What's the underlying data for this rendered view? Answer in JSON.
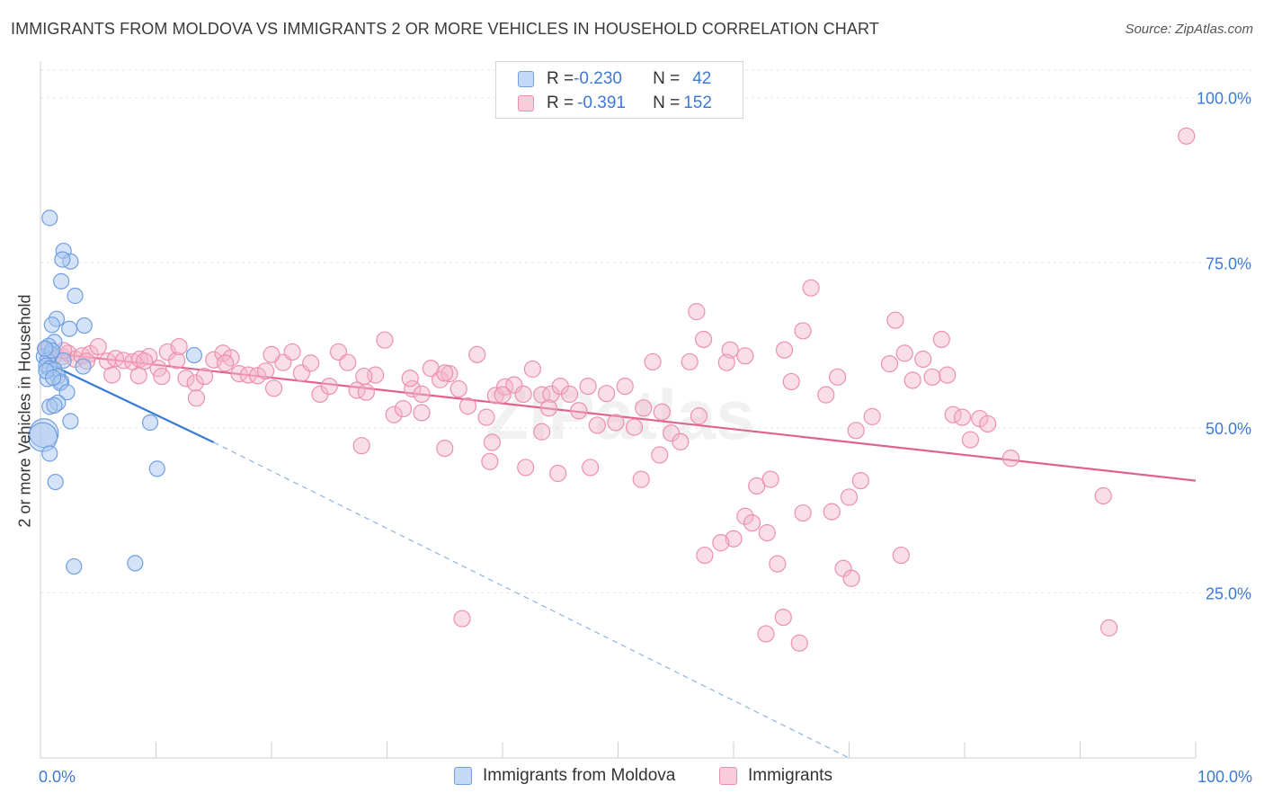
{
  "title": "IMMIGRANTS FROM MOLDOVA VS IMMIGRANTS 2 OR MORE VEHICLES IN HOUSEHOLD CORRELATION CHART",
  "source": "Source: ZipAtlas.com",
  "watermark": "ZIPatlas",
  "legend": {
    "rows": [
      {
        "r_label": "R = ",
        "r_value": "-0.230",
        "n_label": "N = ",
        "n_value": "42",
        "color": "#a9c8f0"
      },
      {
        "r_label": "R = ",
        "r_value": "-0.391",
        "n_label": "N = ",
        "n_value": "152",
        "color": "#f5b6ca"
      }
    ]
  },
  "bottom_legend": [
    {
      "label": "Immigrants from Moldova",
      "color": "#a9c8f0"
    },
    {
      "label": "Immigrants",
      "color": "#f5b6ca"
    }
  ],
  "colors": {
    "blue": "#3a7bd5",
    "pink": "#e0628f",
    "blue_fill": "#a9c8f0",
    "pink_fill": "#f5b6ca",
    "axis_text": "#3d7ad6"
  },
  "chart_data": {
    "type": "scatter",
    "title": "IMMIGRANTS FROM MOLDOVA VS IMMIGRANTS 2 OR MORE VEHICLES IN HOUSEHOLD CORRELATION CHART",
    "xlabel": "",
    "ylabel": "2 or more Vehicles in Household",
    "xlim": [
      0,
      100
    ],
    "ylim": [
      0,
      105
    ],
    "x_tick_labels": [
      "0.0%",
      "100.0%"
    ],
    "y_ticks": [
      25,
      50,
      75,
      100
    ],
    "y_tick_labels": [
      "25.0%",
      "50.0%",
      "75.0%",
      "100.0%"
    ],
    "grid": true,
    "legend_position": "top-center",
    "series": [
      {
        "name": "Immigrants from Moldova",
        "color": "#3a7bd5",
        "trend": {
          "x0": 0,
          "y0": 60.3,
          "x1": 15,
          "y1": 47.8,
          "dashed_to_x": 70,
          "dashed_to_y": 0
        },
        "points": [
          [
            0.8,
            81.8
          ],
          [
            2.0,
            76.8
          ],
          [
            2.6,
            75.2
          ],
          [
            1.9,
            75.5
          ],
          [
            1.8,
            72.2
          ],
          [
            3.0,
            70.0
          ],
          [
            1.4,
            66.5
          ],
          [
            1.0,
            65.6
          ],
          [
            3.8,
            65.5
          ],
          [
            2.5,
            65.0
          ],
          [
            1.2,
            63.0
          ],
          [
            0.7,
            62.4
          ],
          [
            0.9,
            61.2
          ],
          [
            13.3,
            61.0
          ],
          [
            0.3,
            60.8
          ],
          [
            0.6,
            60.2
          ],
          [
            2.0,
            60.2
          ],
          [
            0.5,
            59.4
          ],
          [
            0.8,
            59.0
          ],
          [
            1.2,
            58.8
          ],
          [
            3.7,
            59.3
          ],
          [
            1.5,
            57.8
          ],
          [
            1.8,
            57.0
          ],
          [
            0.6,
            57.4
          ],
          [
            1.7,
            56.8
          ],
          [
            2.3,
            55.4
          ],
          [
            1.5,
            53.8
          ],
          [
            0.8,
            53.2
          ],
          [
            1.2,
            53.4
          ],
          [
            2.6,
            51.0
          ],
          [
            9.5,
            50.8
          ],
          [
            0.3,
            49.2
          ],
          [
            0.2,
            48.6
          ],
          [
            0.8,
            46.1
          ],
          [
            10.1,
            43.8
          ],
          [
            1.3,
            41.8
          ],
          [
            2.9,
            29.0
          ],
          [
            8.2,
            29.5
          ],
          [
            1.0,
            61.7
          ],
          [
            0.5,
            58.6
          ],
          [
            1.1,
            57.6
          ],
          [
            0.4,
            62.0
          ]
        ]
      },
      {
        "name": "Immigrants",
        "color": "#e0628f",
        "trend": {
          "x0": 0,
          "y0": 61.5,
          "x1": 100,
          "y1": 42.0
        },
        "points": [
          [
            0.5,
            61.8
          ],
          [
            1.2,
            61.0
          ],
          [
            1.9,
            60.8
          ],
          [
            2.4,
            61.3
          ],
          [
            3.0,
            60.4
          ],
          [
            3.6,
            60.9
          ],
          [
            4.3,
            61.2
          ],
          [
            5.0,
            62.3
          ],
          [
            5.8,
            60.1
          ],
          [
            6.5,
            60.5
          ],
          [
            7.2,
            60.2
          ],
          [
            8.0,
            60.0
          ],
          [
            8.6,
            60.4
          ],
          [
            9.4,
            60.8
          ],
          [
            10.2,
            59.0
          ],
          [
            11.0,
            61.5
          ],
          [
            11.8,
            60.2
          ],
          [
            12.6,
            57.5
          ],
          [
            13.4,
            56.8
          ],
          [
            14.2,
            57.8
          ],
          [
            15.0,
            60.3
          ],
          [
            15.8,
            61.3
          ],
          [
            16.5,
            60.6
          ],
          [
            17.2,
            58.2
          ],
          [
            18.0,
            58.0
          ],
          [
            18.8,
            57.9
          ],
          [
            19.5,
            58.6
          ],
          [
            20.2,
            56.0
          ],
          [
            21.0,
            59.9
          ],
          [
            21.8,
            61.5
          ],
          [
            22.6,
            58.3
          ],
          [
            23.4,
            59.8
          ],
          [
            24.2,
            55.1
          ],
          [
            25.0,
            56.3
          ],
          [
            25.8,
            61.5
          ],
          [
            26.6,
            59.9
          ],
          [
            27.4,
            55.7
          ],
          [
            28.2,
            55.4
          ],
          [
            29.0,
            58.0
          ],
          [
            29.8,
            63.3
          ],
          [
            30.6,
            52.0
          ],
          [
            31.4,
            52.9
          ],
          [
            32.2,
            55.9
          ],
          [
            33.0,
            55.1
          ],
          [
            33.8,
            59.0
          ],
          [
            34.6,
            57.3
          ],
          [
            35.4,
            58.2
          ],
          [
            36.2,
            55.9
          ],
          [
            37.0,
            53.3
          ],
          [
            37.8,
            61.1
          ],
          [
            38.6,
            51.6
          ],
          [
            39.4,
            54.9
          ],
          [
            40.2,
            56.2
          ],
          [
            41.0,
            56.5
          ],
          [
            41.8,
            55.1
          ],
          [
            42.6,
            58.9
          ],
          [
            43.4,
            55.0
          ],
          [
            44.2,
            55.1
          ],
          [
            45.0,
            56.3
          ],
          [
            45.8,
            55.1
          ],
          [
            46.6,
            52.6
          ],
          [
            47.4,
            56.3
          ],
          [
            48.2,
            50.4
          ],
          [
            49.0,
            55.2
          ],
          [
            49.8,
            50.8
          ],
          [
            50.6,
            56.3
          ],
          [
            51.4,
            50.1
          ],
          [
            52.2,
            53.0
          ],
          [
            53.0,
            60.0
          ],
          [
            53.8,
            52.4
          ],
          [
            54.6,
            49.2
          ],
          [
            55.4,
            47.9
          ],
          [
            56.2,
            60.0
          ],
          [
            57.0,
            51.8
          ],
          [
            13.5,
            54.5
          ],
          [
            10.5,
            57.8
          ],
          [
            8.5,
            57.9
          ],
          [
            6.2,
            58.0
          ],
          [
            2.0,
            61.7
          ],
          [
            4.0,
            60.1
          ],
          [
            9.0,
            60.1
          ],
          [
            12.0,
            62.3
          ],
          [
            16.0,
            59.8
          ],
          [
            20.0,
            61.1
          ],
          [
            28.0,
            57.8
          ],
          [
            32.0,
            57.5
          ],
          [
            35.0,
            58.3
          ],
          [
            40.0,
            55.0
          ],
          [
            44.0,
            53.0
          ],
          [
            33.0,
            52.3
          ],
          [
            35.0,
            46.9
          ],
          [
            38.9,
            44.9
          ],
          [
            39.1,
            47.8
          ],
          [
            42.0,
            44.0
          ],
          [
            44.8,
            43.1
          ],
          [
            43.4,
            49.4
          ],
          [
            47.6,
            44.0
          ],
          [
            52.0,
            42.2
          ],
          [
            53.6,
            45.9
          ],
          [
            56.8,
            67.6
          ],
          [
            57.4,
            63.4
          ],
          [
            59.7,
            61.8
          ],
          [
            59.4,
            59.9
          ],
          [
            62.0,
            41.2
          ],
          [
            61.0,
            60.9
          ],
          [
            63.2,
            42.2
          ],
          [
            64.4,
            61.8
          ],
          [
            66.0,
            64.7
          ],
          [
            65.0,
            57.0
          ],
          [
            66.7,
            71.2
          ],
          [
            69.0,
            57.7
          ],
          [
            70.6,
            49.6
          ],
          [
            72.0,
            51.7
          ],
          [
            70.0,
            39.5
          ],
          [
            74.0,
            66.3
          ],
          [
            73.5,
            59.7
          ],
          [
            74.8,
            61.3
          ],
          [
            75.5,
            57.2
          ],
          [
            76.4,
            60.4
          ],
          [
            77.2,
            57.7
          ],
          [
            78.0,
            63.4
          ],
          [
            78.5,
            58.0
          ],
          [
            79.0,
            52.0
          ],
          [
            79.8,
            51.6
          ],
          [
            80.5,
            48.2
          ],
          [
            81.3,
            51.4
          ],
          [
            82.0,
            50.6
          ],
          [
            84.0,
            45.4
          ],
          [
            71.0,
            42.0
          ],
          [
            68.0,
            55.0
          ],
          [
            66.0,
            37.1
          ],
          [
            68.5,
            37.3
          ],
          [
            69.5,
            28.7
          ],
          [
            70.2,
            27.2
          ],
          [
            74.5,
            30.7
          ],
          [
            61.0,
            36.6
          ],
          [
            61.6,
            35.6
          ],
          [
            60.0,
            33.2
          ],
          [
            57.5,
            30.7
          ],
          [
            58.9,
            32.6
          ],
          [
            62.9,
            34.1
          ],
          [
            63.8,
            29.4
          ],
          [
            64.3,
            21.3
          ],
          [
            62.8,
            18.8
          ],
          [
            65.7,
            17.4
          ],
          [
            36.5,
            21.1
          ],
          [
            92.0,
            39.7
          ],
          [
            92.5,
            19.7
          ],
          [
            99.2,
            94.2
          ],
          [
            27.8,
            47.3
          ]
        ]
      }
    ]
  }
}
